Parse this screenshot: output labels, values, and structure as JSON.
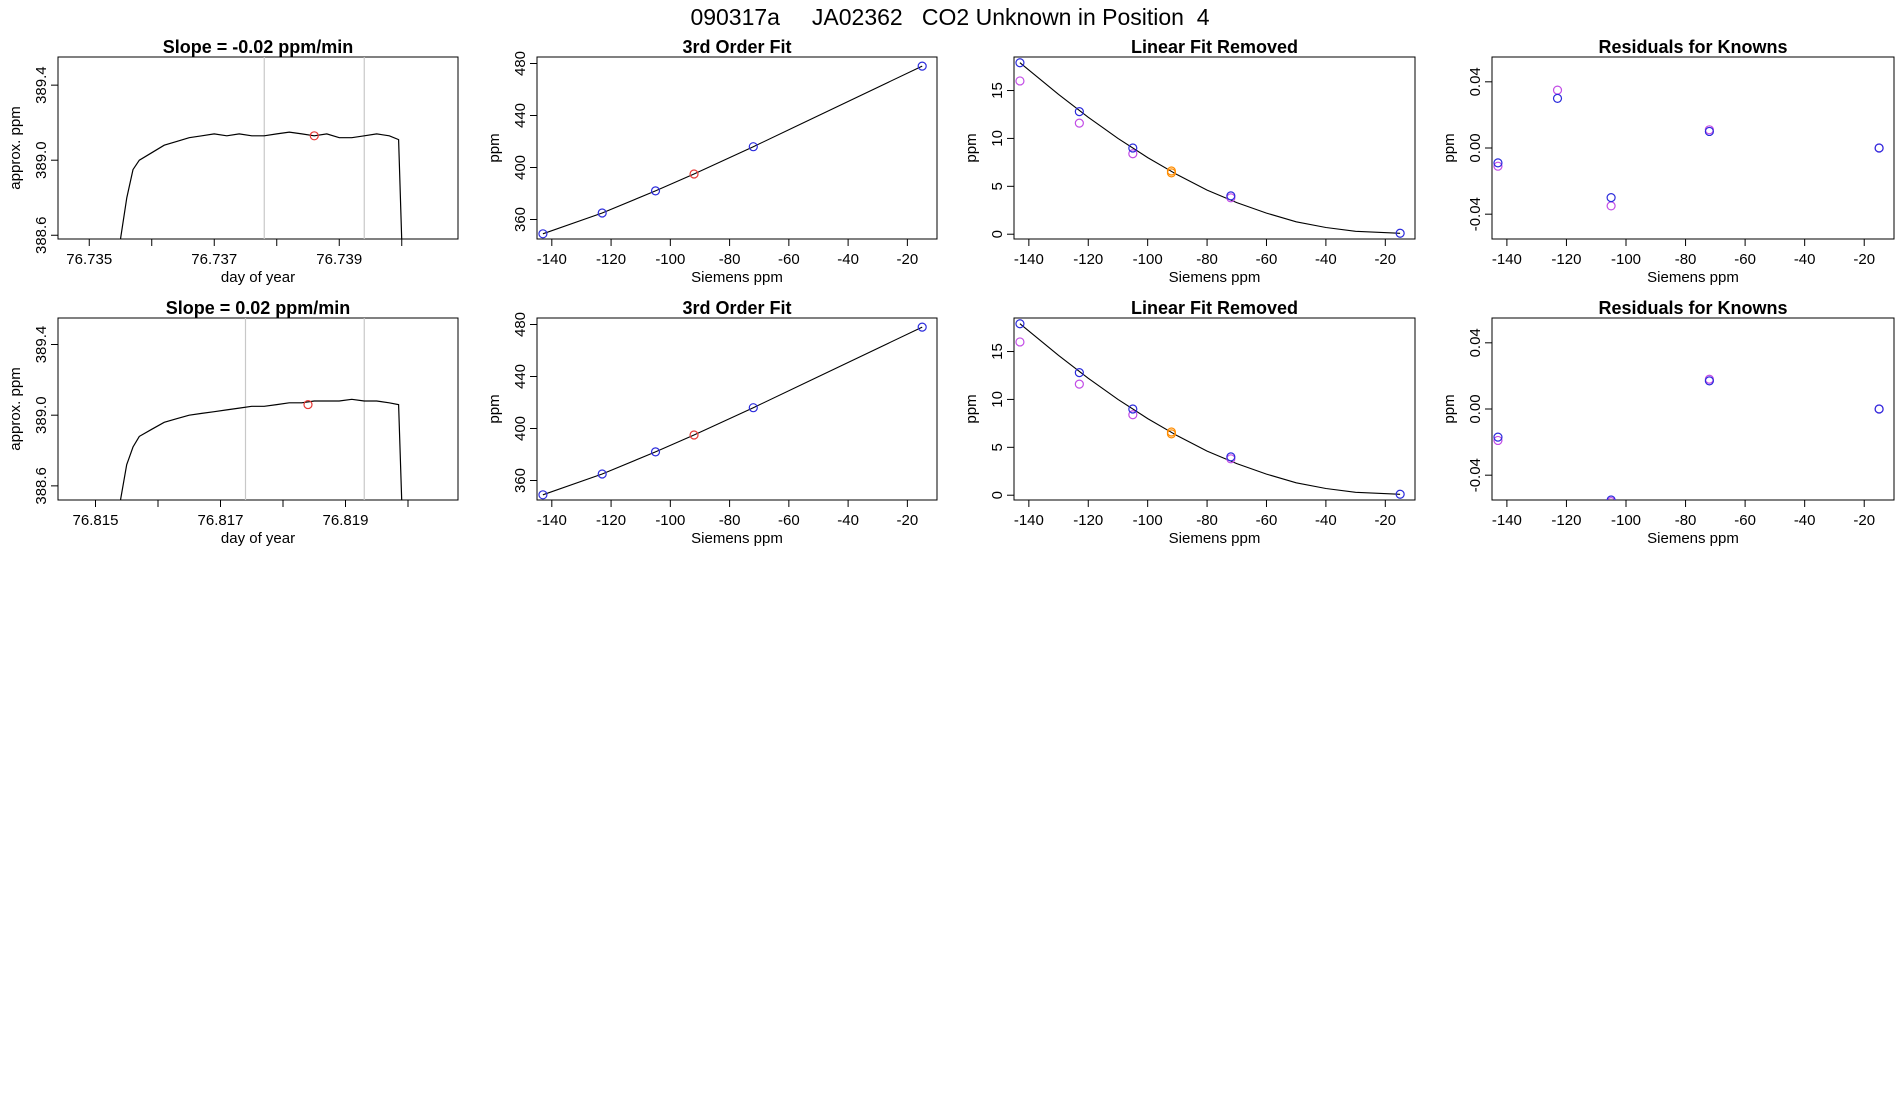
{
  "page": {
    "title": "090317a     JA02362   CO2 Unknown in Position  4"
  },
  "colors": {
    "axis": "#000000",
    "trace": "#000000",
    "marker_line": "#c8c8c8",
    "red_point": "#e53935",
    "blue_point": "#2b2bdc",
    "magenta_point": "#c24ce6",
    "orange_point": "#ff8c00"
  },
  "chart_data": [
    {
      "type": "line",
      "title": "Slope =  -0.02  ppm/min",
      "xlabel": "day of year",
      "ylabel": "approx. ppm",
      "xlim": [
        76.7345,
        76.7409
      ],
      "ylim": [
        388.58,
        389.55
      ],
      "xticks": [
        76.735,
        76.736,
        76.737,
        76.738,
        76.739,
        76.74
      ],
      "xtick_labels": [
        "76.735",
        "",
        "76.737",
        "",
        "76.739",
        ""
      ],
      "yticks": [
        388.6,
        389.0,
        389.4
      ],
      "ytick_labels": [
        "388.6",
        "389.0",
        "389.4"
      ],
      "vlines": [
        76.7378,
        76.7394
      ],
      "highlight": {
        "x": 76.7386,
        "y": 389.13
      },
      "trace": [
        [
          76.7355,
          388.58
        ],
        [
          76.7356,
          388.8
        ],
        [
          76.7357,
          388.95
        ],
        [
          76.7358,
          389.0
        ],
        [
          76.736,
          389.04
        ],
        [
          76.7362,
          389.08
        ],
        [
          76.7364,
          389.1
        ],
        [
          76.7366,
          389.12
        ],
        [
          76.7368,
          389.13
        ],
        [
          76.737,
          389.14
        ],
        [
          76.7372,
          389.13
        ],
        [
          76.7374,
          389.14
        ],
        [
          76.7376,
          389.13
        ],
        [
          76.7378,
          389.13
        ],
        [
          76.738,
          389.14
        ],
        [
          76.7382,
          389.15
        ],
        [
          76.7384,
          389.14
        ],
        [
          76.7386,
          389.13
        ],
        [
          76.7388,
          389.14
        ],
        [
          76.739,
          389.12
        ],
        [
          76.7392,
          389.12
        ],
        [
          76.7394,
          389.13
        ],
        [
          76.7396,
          389.14
        ],
        [
          76.7398,
          389.13
        ],
        [
          76.73995,
          389.11
        ],
        [
          76.74,
          388.58
        ]
      ]
    },
    {
      "type": "scatter",
      "title": "3rd Order Fit",
      "xlabel": "Siemens ppm",
      "ylabel": "ppm",
      "xlim": [
        -145,
        -10
      ],
      "ylim": [
        345,
        485
      ],
      "xticks": [
        -140,
        -120,
        -100,
        -80,
        -60,
        -40,
        -20
      ],
      "yticks": [
        360,
        400,
        440,
        480
      ],
      "fit_curve": [
        [
          -143,
          349
        ],
        [
          -123,
          365
        ],
        [
          -105,
          382
        ],
        [
          -92,
          395
        ],
        [
          -72,
          416
        ],
        [
          -15,
          478
        ]
      ],
      "points_blue": [
        [
          -143,
          349
        ],
        [
          -123,
          365
        ],
        [
          -105,
          382
        ],
        [
          -72,
          416
        ],
        [
          -15,
          478
        ]
      ],
      "points_red": [
        [
          -92,
          395
        ]
      ]
    },
    {
      "type": "scatter",
      "title": "Linear Fit Removed",
      "xlabel": "Siemens ppm",
      "ylabel": "ppm",
      "xlim": [
        -145,
        -10
      ],
      "ylim": [
        -0.5,
        18.5
      ],
      "xticks": [
        -140,
        -120,
        -100,
        -80,
        -60,
        -40,
        -20
      ],
      "yticks": [
        0,
        5,
        10,
        15
      ],
      "fit_curve": [
        [
          -143,
          17.9
        ],
        [
          -130,
          14.6
        ],
        [
          -120,
          12.2
        ],
        [
          -110,
          10.0
        ],
        [
          -100,
          8.0
        ],
        [
          -90,
          6.2
        ],
        [
          -80,
          4.6
        ],
        [
          -70,
          3.3
        ],
        [
          -60,
          2.2
        ],
        [
          -50,
          1.3
        ],
        [
          -40,
          0.7
        ],
        [
          -30,
          0.3
        ],
        [
          -15,
          0.1
        ]
      ],
      "points_blue": [
        [
          -143,
          17.9
        ],
        [
          -123,
          12.8
        ],
        [
          -105,
          9.0
        ],
        [
          -72,
          4.0
        ],
        [
          -15,
          0.1
        ]
      ],
      "points_magenta": [
        [
          -143,
          16.0
        ],
        [
          -123,
          11.6
        ],
        [
          -105,
          8.4
        ],
        [
          -72,
          3.8
        ]
      ],
      "points_orange": [
        [
          -92,
          6.6
        ],
        [
          -92,
          6.4
        ]
      ]
    },
    {
      "type": "scatter",
      "title": "Residuals for Knowns",
      "xlabel": "Siemens ppm",
      "ylabel": "ppm",
      "xlim": [
        -145,
        -10
      ],
      "ylim": [
        -0.055,
        0.055
      ],
      "xticks": [
        -140,
        -120,
        -100,
        -80,
        -60,
        -40,
        -20
      ],
      "yticks": [
        -0.04,
        0.0,
        0.04
      ],
      "ytick_labels": [
        "-0.04",
        "0.00",
        "0.04"
      ],
      "points_blue": [
        [
          -143,
          -0.009
        ],
        [
          -123,
          0.03
        ],
        [
          -105,
          -0.03
        ],
        [
          -72,
          0.01
        ],
        [
          -15,
          0.0
        ]
      ],
      "points_magenta": [
        [
          -143,
          -0.011
        ],
        [
          -123,
          0.035
        ],
        [
          -105,
          -0.035
        ],
        [
          -72,
          0.011
        ],
        [
          -15,
          0.0
        ]
      ]
    },
    {
      "type": "line",
      "title": "Slope =  0.02  ppm/min",
      "xlabel": "day of year",
      "ylabel": "approx. ppm",
      "xlim": [
        76.8144,
        76.8208
      ],
      "ylim": [
        388.52,
        389.55
      ],
      "xticks": [
        76.815,
        76.816,
        76.817,
        76.818,
        76.819,
        76.82
      ],
      "xtick_labels": [
        "76.815",
        "",
        "76.817",
        "",
        "76.819",
        ""
      ],
      "yticks": [
        388.6,
        389.0,
        389.4
      ],
      "ytick_labels": [
        "388.6",
        "389.0",
        "389.4"
      ],
      "vlines": [
        76.8174,
        76.8193
      ],
      "highlight": {
        "x": 76.8184,
        "y": 389.06
      },
      "trace": [
        [
          76.8154,
          388.52
        ],
        [
          76.8155,
          388.72
        ],
        [
          76.8156,
          388.82
        ],
        [
          76.8157,
          388.88
        ],
        [
          76.8159,
          388.92
        ],
        [
          76.8161,
          388.96
        ],
        [
          76.8163,
          388.98
        ],
        [
          76.8165,
          389.0
        ],
        [
          76.8167,
          389.01
        ],
        [
          76.8169,
          389.02
        ],
        [
          76.8171,
          389.03
        ],
        [
          76.8173,
          389.04
        ],
        [
          76.8175,
          389.05
        ],
        [
          76.8177,
          389.05
        ],
        [
          76.8179,
          389.06
        ],
        [
          76.8181,
          389.07
        ],
        [
          76.8183,
          389.07
        ],
        [
          76.8185,
          389.08
        ],
        [
          76.8187,
          389.08
        ],
        [
          76.8189,
          389.08
        ],
        [
          76.8191,
          389.09
        ],
        [
          76.8193,
          389.08
        ],
        [
          76.8195,
          389.08
        ],
        [
          76.8197,
          389.07
        ],
        [
          76.81985,
          389.06
        ],
        [
          76.8199,
          388.52
        ]
      ]
    },
    {
      "type": "scatter",
      "title": "3rd Order Fit",
      "xlabel": "Siemens ppm",
      "ylabel": "ppm",
      "xlim": [
        -145,
        -10
      ],
      "ylim": [
        345,
        485
      ],
      "xticks": [
        -140,
        -120,
        -100,
        -80,
        -60,
        -40,
        -20
      ],
      "yticks": [
        360,
        400,
        440,
        480
      ],
      "fit_curve": [
        [
          -143,
          349
        ],
        [
          -123,
          365
        ],
        [
          -105,
          382
        ],
        [
          -92,
          395
        ],
        [
          -72,
          416
        ],
        [
          -15,
          478
        ]
      ],
      "points_blue": [
        [
          -143,
          349
        ],
        [
          -123,
          365
        ],
        [
          -105,
          382
        ],
        [
          -72,
          416
        ],
        [
          -15,
          478
        ]
      ],
      "points_red": [
        [
          -92,
          395
        ]
      ]
    },
    {
      "type": "scatter",
      "title": "Linear Fit Removed",
      "xlabel": "Siemens ppm",
      "ylabel": "ppm",
      "xlim": [
        -145,
        -10
      ],
      "ylim": [
        -0.5,
        18.5
      ],
      "xticks": [
        -140,
        -120,
        -100,
        -80,
        -60,
        -40,
        -20
      ],
      "yticks": [
        0,
        5,
        10,
        15
      ],
      "fit_curve": [
        [
          -143,
          17.9
        ],
        [
          -130,
          14.6
        ],
        [
          -120,
          12.2
        ],
        [
          -110,
          10.0
        ],
        [
          -100,
          8.0
        ],
        [
          -90,
          6.2
        ],
        [
          -80,
          4.6
        ],
        [
          -70,
          3.3
        ],
        [
          -60,
          2.2
        ],
        [
          -50,
          1.3
        ],
        [
          -40,
          0.7
        ],
        [
          -30,
          0.3
        ],
        [
          -15,
          0.1
        ]
      ],
      "points_blue": [
        [
          -143,
          17.9
        ],
        [
          -123,
          12.8
        ],
        [
          -105,
          9.0
        ],
        [
          -72,
          4.0
        ],
        [
          -15,
          0.1
        ]
      ],
      "points_magenta": [
        [
          -143,
          16.0
        ],
        [
          -123,
          11.6
        ],
        [
          -105,
          8.4
        ],
        [
          -72,
          3.8
        ]
      ],
      "points_orange": [
        [
          -92,
          6.6
        ],
        [
          -92,
          6.4
        ]
      ]
    },
    {
      "type": "scatter",
      "title": "Residuals for Knowns",
      "xlabel": "Siemens ppm",
      "ylabel": "ppm",
      "xlim": [
        -145,
        -10
      ],
      "ylim": [
        -0.055,
        0.055
      ],
      "xticks": [
        -140,
        -120,
        -100,
        -80,
        -60,
        -40,
        -20
      ],
      "yticks": [
        -0.04,
        0.0,
        0.04
      ],
      "ytick_labels": [
        "-0.04",
        "0.00",
        "0.04"
      ],
      "points_blue": [
        [
          -143,
          -0.017
        ],
        [
          -105,
          -0.055
        ],
        [
          -72,
          0.017
        ],
        [
          -15,
          0.0
        ]
      ],
      "points_magenta": [
        [
          -143,
          -0.019
        ],
        [
          -105,
          -0.056
        ],
        [
          -72,
          0.018
        ],
        [
          -15,
          0.0
        ]
      ]
    }
  ]
}
